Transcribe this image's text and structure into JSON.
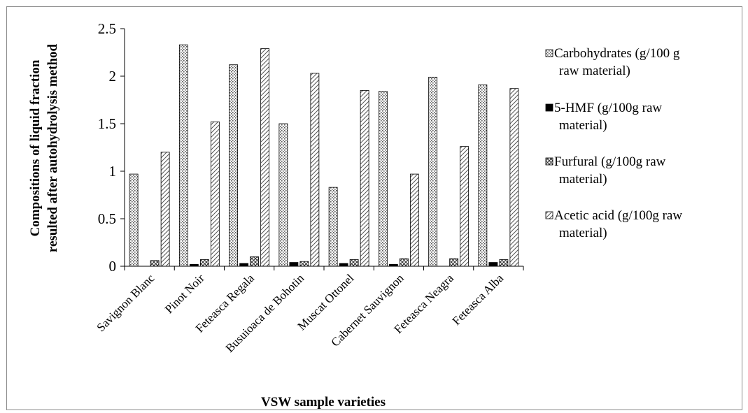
{
  "chart_data": {
    "type": "bar",
    "xlabel": "VSW sample varieties",
    "ylabel": [
      "Compositions of liquid  fraction",
      "resulted after autohydrolysis method"
    ],
    "ylim": [
      0,
      2.5
    ],
    "yticks": [
      "0",
      "0.5",
      "1",
      "1.5",
      "2",
      "2.5"
    ],
    "grid": false,
    "legend_position": "right",
    "categories": [
      "Savignon Blanc",
      "Pinot Noir",
      "Feteasca Regala",
      "Busuioaca de Bohotin",
      "Muscat Ottonel",
      "Cabernet Sauvignon",
      "Feteasca Neagra",
      "Feteasca Alba"
    ],
    "series": [
      {
        "name": "Carbohydrates (g/100 g raw material)",
        "legend_lines": [
          "Carbohydrates (g/100 g",
          "raw material)"
        ],
        "pattern": "dots",
        "values": [
          0.97,
          2.33,
          2.12,
          1.5,
          0.83,
          1.84,
          1.99,
          1.91
        ]
      },
      {
        "name": "5-HMF (g/100g raw material)",
        "legend_lines": [
          "5-HMF (g/100g raw",
          "material)"
        ],
        "pattern": "solid",
        "values": [
          0.0,
          0.02,
          0.03,
          0.04,
          0.03,
          0.02,
          0.0,
          0.04
        ]
      },
      {
        "name": "Furfural (g/100g raw material)",
        "legend_lines": [
          "Furfural (g/100g raw",
          "material)"
        ],
        "pattern": "cross",
        "values": [
          0.06,
          0.07,
          0.1,
          0.05,
          0.07,
          0.08,
          0.08,
          0.07
        ]
      },
      {
        "name": "Acetic acid (g/100g raw material)",
        "legend_lines": [
          "Acetic acid (g/100g raw",
          "material)"
        ],
        "pattern": "diag",
        "values": [
          1.2,
          1.52,
          2.29,
          2.03,
          1.85,
          0.97,
          1.26,
          1.87
        ]
      }
    ]
  }
}
